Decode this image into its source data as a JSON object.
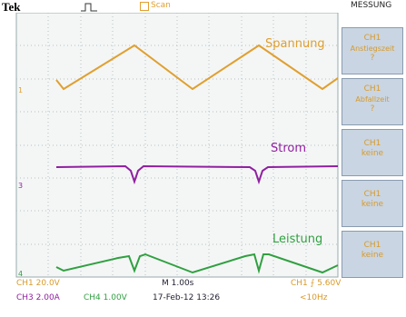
{
  "header": {
    "brand": "Tek",
    "mode": "Scan",
    "menu_title": "MESSUNG"
  },
  "traces": [
    {
      "label": "Spannung",
      "marker": "1"
    },
    {
      "label": "Strom",
      "marker": "3"
    },
    {
      "label": "Leistung",
      "marker": "4"
    }
  ],
  "menu": [
    {
      "channel": "CH1",
      "label": "Anstiegszeit",
      "value": "?"
    },
    {
      "channel": "CH1",
      "label": "Abfallzeit",
      "value": "?"
    },
    {
      "channel": "CH1",
      "label": "keine"
    },
    {
      "channel": "CH1",
      "label": "keine"
    },
    {
      "channel": "CH1",
      "label": "keine"
    }
  ],
  "status": {
    "ch1_scale": "CH1  20.0V",
    "timebase": "M 1.00s",
    "trigger": "CH1 ⨍ 5.60V",
    "ch3_scale": "CH3  2.00A",
    "ch4_scale": "CH4  1.00V",
    "datetime": "17-Feb-12 13:26",
    "frequency": "<10Hz"
  }
}
